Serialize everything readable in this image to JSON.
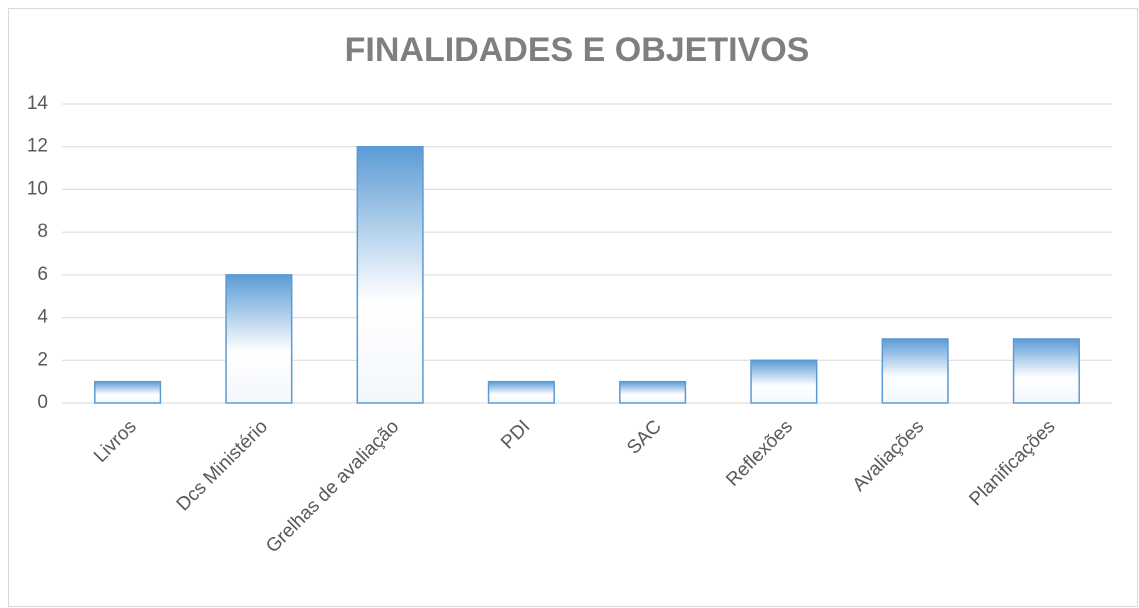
{
  "chart_data": {
    "type": "bar",
    "title": "FINALIDADES E OBJETIVOS",
    "categories": [
      "Livros",
      "Dcs Ministério",
      "Grelhas de avaliação",
      "PDI",
      "SAC",
      "Reflexões",
      "Avaliações",
      "Planificações"
    ],
    "values": [
      1,
      6,
      12,
      1,
      1,
      2,
      3,
      3
    ],
    "color": "#5b9bd5",
    "ylim": [
      0,
      14
    ],
    "yticks": [
      0,
      2,
      4,
      6,
      8,
      10,
      12,
      14
    ],
    "grid": true
  }
}
